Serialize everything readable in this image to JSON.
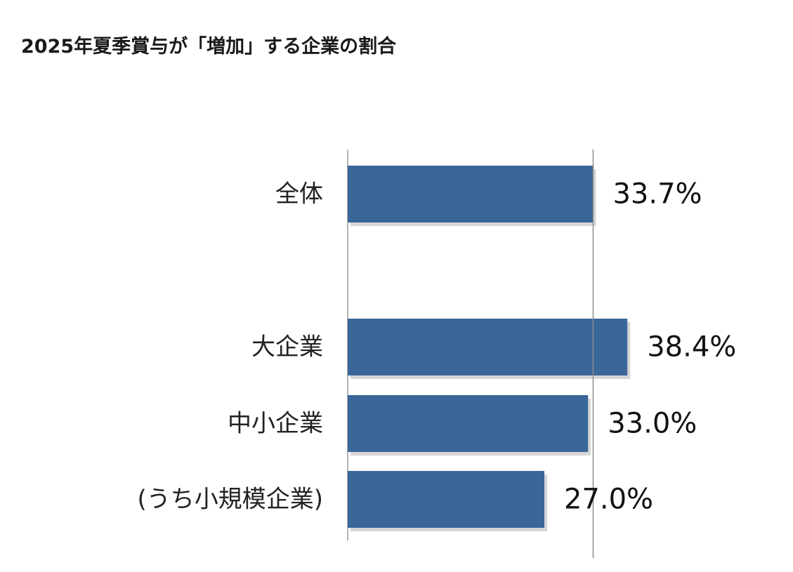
{
  "chart_data": {
    "type": "bar",
    "orientation": "horizontal",
    "title": "2025年夏季賞与が「増加」する企業の割合",
    "categories": [
      "全体",
      "大企業",
      "中小企業",
      "(うち小規模企業)"
    ],
    "values": [
      33.7,
      38.4,
      33.0,
      27.0
    ],
    "value_labels": [
      "33.7%",
      "38.4%",
      "33.0%",
      "27.0%"
    ],
    "reference_line": 33.7,
    "xlim": [
      0,
      40
    ],
    "grid": false,
    "legend": "none",
    "colors": {
      "bar": "#3a6699",
      "bar_shadow": "#b5b5b5",
      "axis": "#9a9a9a",
      "reference": "#8c8c8c"
    }
  }
}
